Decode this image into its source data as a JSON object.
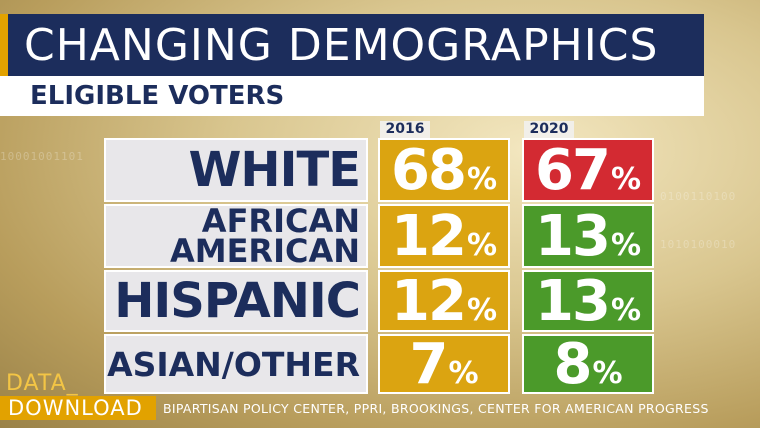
{
  "title": "CHANGING DEMOGRAPHICS",
  "subtitle": "ELIGIBLE VOTERS",
  "brand": {
    "line1": "DATA_",
    "line2": "DOWNLOAD"
  },
  "source": "BIPARTISAN POLICY CENTER, PPRI, BROOKINGS, CENTER FOR AMERICAN PROGRESS",
  "colors": {
    "navy": "#1c2d5c",
    "gold": "#dba411",
    "green": "#4b9a2a",
    "red": "#d32a32",
    "label_bg": "#e8e7ea"
  },
  "chart_data": {
    "type": "table",
    "title": "CHANGING DEMOGRAPHICS",
    "subtitle": "ELIGIBLE VOTERS",
    "columns": [
      "2016",
      "2020"
    ],
    "unit": "%",
    "rows": [
      {
        "label": "WHITE",
        "label_lines": [
          "WHITE"
        ],
        "values": [
          68,
          67
        ]
      },
      {
        "label": "AFRICAN AMERICAN",
        "label_lines": [
          "AFRICAN",
          "AMERICAN"
        ],
        "values": [
          12,
          13
        ]
      },
      {
        "label": "HISPANIC",
        "label_lines": [
          "HISPANIC"
        ],
        "values": [
          12,
          13
        ]
      },
      {
        "label": "ASIAN/OTHER",
        "label_lines": [
          "ASIAN/OTHER"
        ],
        "values": [
          7,
          8
        ]
      }
    ]
  }
}
